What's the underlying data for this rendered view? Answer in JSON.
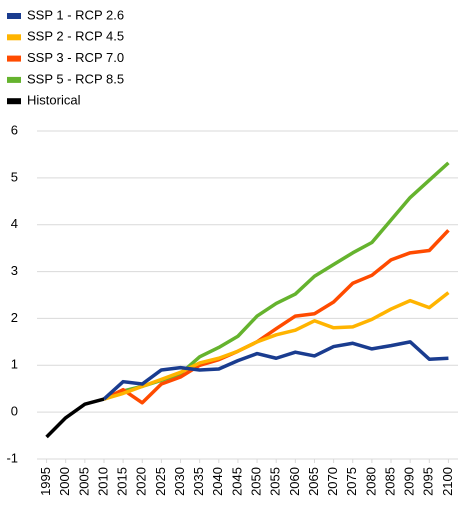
{
  "chart_data": {
    "type": "line",
    "x": [
      1995,
      2000,
      2005,
      2010,
      2015,
      2020,
      2025,
      2030,
      2035,
      2040,
      2045,
      2050,
      2055,
      2060,
      2065,
      2070,
      2075,
      2080,
      2085,
      2090,
      2095,
      2100
    ],
    "series": [
      {
        "name": "SSP 1 - RCP 2.6",
        "color": "#1a3c8f",
        "values": [
          null,
          null,
          null,
          0.28,
          0.65,
          0.6,
          0.9,
          0.95,
          0.9,
          0.92,
          1.1,
          1.25,
          1.15,
          1.28,
          1.2,
          1.4,
          1.47,
          1.35,
          1.42,
          1.5,
          1.13,
          1.15
        ]
      },
      {
        "name": "SSP 2 - RCP 4.5",
        "color": "#ffb400",
        "values": [
          null,
          null,
          null,
          0.28,
          0.4,
          0.55,
          0.7,
          0.85,
          1.05,
          1.15,
          1.3,
          1.5,
          1.65,
          1.75,
          1.95,
          1.8,
          1.82,
          1.98,
          2.2,
          2.38,
          2.23,
          2.55
        ]
      },
      {
        "name": "SSP 3 - RCP 7.0",
        "color": "#ff4b00",
        "values": [
          null,
          null,
          null,
          0.28,
          0.48,
          0.2,
          0.6,
          0.75,
          1.0,
          1.12,
          1.3,
          1.5,
          1.78,
          2.05,
          2.1,
          2.35,
          2.75,
          2.92,
          3.25,
          3.4,
          3.45,
          3.88
        ]
      },
      {
        "name": "SSP 5 - RCP 8.5",
        "color": "#65b32e",
        "values": [
          null,
          null,
          null,
          0.28,
          0.45,
          0.55,
          0.68,
          0.82,
          1.18,
          1.38,
          1.62,
          2.05,
          2.32,
          2.52,
          2.9,
          3.15,
          3.4,
          3.62,
          4.1,
          4.58,
          4.95,
          5.32
        ]
      },
      {
        "name": "Historical",
        "color": "#000000",
        "values": [
          -0.53,
          -0.12,
          0.17,
          0.28,
          null,
          null,
          null,
          null,
          null,
          null,
          null,
          null,
          null,
          null,
          null,
          null,
          null,
          null,
          null,
          null,
          null,
          null
        ]
      }
    ],
    "xlim": [
      1992.5,
      2102.5
    ],
    "xticks": [
      1995,
      2000,
      2005,
      2010,
      2015,
      2020,
      2025,
      2030,
      2035,
      2040,
      2045,
      2050,
      2055,
      2060,
      2065,
      2070,
      2075,
      2080,
      2085,
      2090,
      2095,
      2100
    ],
    "ylim": [
      -1,
      6
    ],
    "yticks": [
      -1,
      0,
      1,
      2,
      3,
      4,
      5,
      6
    ],
    "grid": true
  }
}
